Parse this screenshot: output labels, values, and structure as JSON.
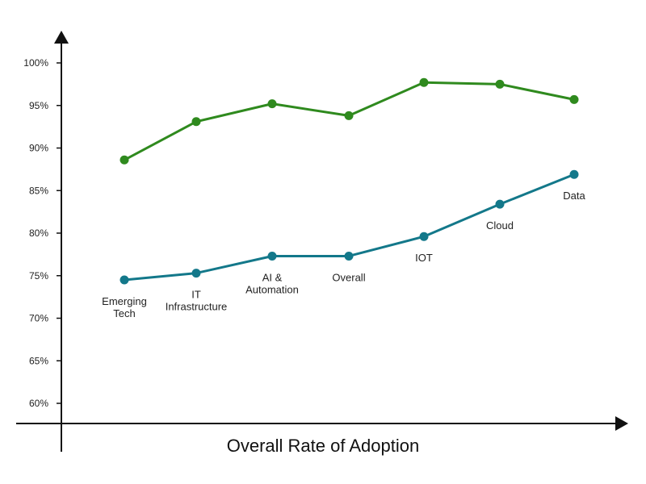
{
  "chart_data": {
    "type": "line",
    "xlabel": "Overall Rate of Adoption",
    "ylabel": "",
    "title": "",
    "ylim": [
      57,
      104
    ],
    "yticks": [
      60,
      65,
      70,
      75,
      80,
      85,
      90,
      95,
      100
    ],
    "ytick_labels": [
      "60%",
      "65%",
      "70%",
      "75%",
      "80%",
      "85%",
      "90%",
      "95%",
      "100%"
    ],
    "grid": false,
    "legend": "none",
    "categories": [
      "Emerging Tech",
      "IT Infrastructure",
      "AI & Automation",
      "Overall",
      "IOT",
      "Cloud",
      "Data"
    ],
    "category_label_lines": [
      [
        "Emerging",
        "Tech"
      ],
      [
        "IT",
        "Infrastructure"
      ],
      [
        "AI &",
        "Automation"
      ],
      [
        "Overall"
      ],
      [
        "IOT"
      ],
      [
        "Cloud"
      ],
      [
        "Data"
      ]
    ],
    "series": [
      {
        "color": "#2f8a1e",
        "values": [
          88.6,
          93.1,
          95.2,
          93.8,
          97.7,
          97.5,
          95.7
        ]
      },
      {
        "color": "#13788a",
        "values": [
          74.5,
          75.3,
          77.3,
          77.3,
          79.6,
          83.4,
          86.9
        ]
      }
    ]
  }
}
